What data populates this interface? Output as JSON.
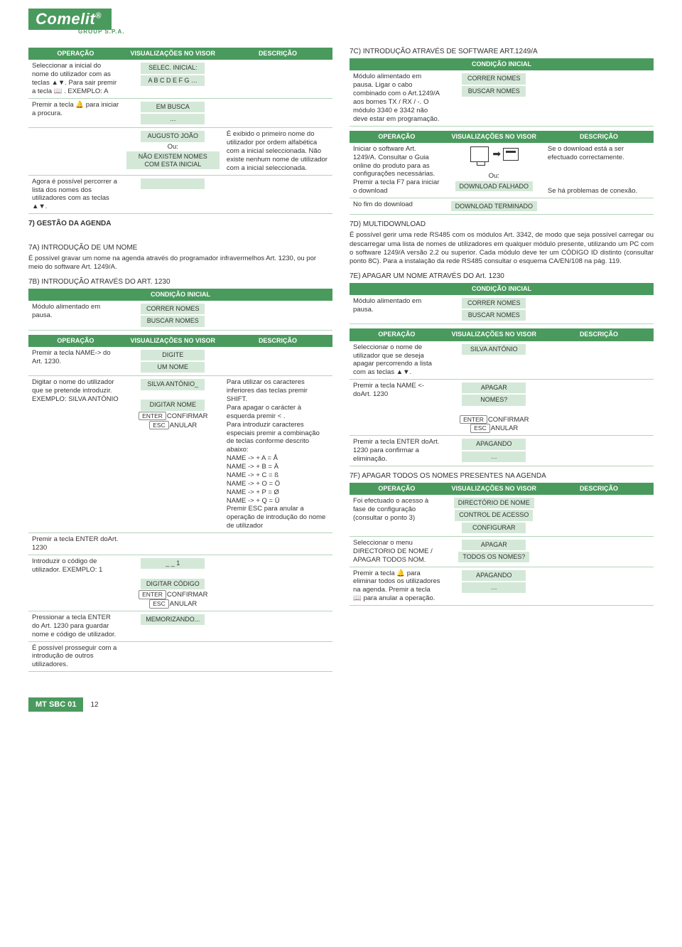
{
  "logo": {
    "brand": "Comelit",
    "sub": "GROUP S.P.A."
  },
  "headers": {
    "operacao": "OPERAÇÃO",
    "visualizacoes": "VISUALIZAÇÕES NO VISOR",
    "descricao": "DESCRIÇÃO",
    "condicao": "CONDIÇÃO INICIAL"
  },
  "left": {
    "table1": {
      "r1": {
        "op": "Seleccionar a inicial do nome do utilizador com as teclas ▲▼. Para sair premir a tecla 📖 . EXEMPLO: A",
        "vis1": "SELEC. INICIAL:",
        "vis2": "A B C D E F G …"
      },
      "r2": {
        "op": "Premir a tecla 🔔 para iniciar a procura.",
        "vis1": "EM BUSCA",
        "vis2": "…"
      },
      "r3": {
        "vis1": "AUGUSTO JOÃO",
        "ou": "Ou:",
        "vis2": "NÃO EXISTEM NOMES COM ESTA INICIAL",
        "desc": "É exibido o primeiro nome do utilizador por ordem alfabética com a inicial seleccionada. Não existe nenhum nome de utilizador com a inicial seleccionada."
      },
      "r4": {
        "op": "Agora é possível percorrer a lista dos nomes dos utilizadores com as teclas ▲▼."
      }
    },
    "s7_title": "7) GESTÃO DA AGENDA",
    "s7a_title": "7A) INTRODUÇÃO DE UM NOME",
    "s7a_text": "É possível gravar um nome na agenda através do programador infravermelhos Art. 1230, ou por meio do software Art. 1249/A.",
    "s7b_title": "7B) INTRODUÇÃO ATRAVÉS DO ART. 1230",
    "cond1": {
      "op": "Módulo alimentado em pausa.",
      "vis1": "CORRER NOMES",
      "vis2": "BUSCAR NOMES"
    },
    "table2": {
      "r1": {
        "op": "Premir a tecla NAME-> do Art. 1230.",
        "vis1": "DIGITE",
        "vis2": "UM NOME"
      },
      "r2": {
        "op": "Digitar o nome do utilizador que se pretende introduzir. EXEMPLO: SILVA ANTÓNIO",
        "vis1": "SILVA ANTÓNIO_",
        "vis2": "DIGITAR NOME",
        "k1": "ENTER",
        "k1t": "CONFIRMAR",
        "k2": "ESC",
        "k2t": "ANULAR",
        "desc": "Para utilizar os caracteres inferiores das teclas premir SHIFT.\nPara apagar o carácter à esquerda premir < .\nPara introduzir caracteres especiais premir a combinação de teclas conforme descrito abaixo:\nNAME -> + A = Å\nNAME -> + B = Ä\nNAME -> + C = ß\nNAME -> + O = Ö\nNAME -> + P = Ø\nNAME -> + Q = Ü\nPremir ESC para anular a operação de introdução do nome de utilizador"
      },
      "r3": {
        "op": "Premir a tecla ENTER doArt. 1230"
      },
      "r4": {
        "op": "Introduzir o código de utilizador. EXEMPLO: 1",
        "vis1": "_ _ 1",
        "vis2": "DIGITAR CÓDIGO",
        "k1": "ENTER",
        "k1t": "CONFIRMAR",
        "k2": "ESC",
        "k2t": "ANULAR"
      },
      "r5": {
        "op": "Pressionar a tecla ENTER do Art. 1230 para guardar nome e código de utilizador.",
        "vis1": "MEMORIZANDO..."
      },
      "r6": {
        "op": "É possível prosseguir com a introdução de outros utilizadores."
      }
    }
  },
  "right": {
    "s7c_title": "7C) INTRODUÇÃO ATRAVÉS DE SOFTWARE ART.1249/A",
    "cond1": {
      "op": "Módulo alimentado em pausa. Ligar o cabo combinado com o Art.1249/A aos bornes TX / RX / -. O módulo 3340 e 3342 não deve estar em programação.",
      "vis1": "CORRER NOMES",
      "vis2": "BUSCAR NOMES"
    },
    "table1": {
      "r1": {
        "op": "Iniciar o software Art. 1249/A. Consultar o Guia online do produto para as configurações necessárias. Premir a tecla F7 para iniciar o download",
        "desc1": "Se o download está a ser efectuado correctamente.",
        "ou": "Ou:",
        "vis2": "DOWNLOAD FALHADO",
        "desc2": "Se há problemas de conexão."
      },
      "r2": {
        "op": "No fim do download",
        "vis1": "DOWNLOAD TERMINADO"
      }
    },
    "s7d_title": "7D) MULTIDOWNLOAD",
    "s7d_text": "É possível gerir uma rede RS485 com os módulos Art. 3342, de modo que seja possível carregar ou descarregar uma lista de nomes de utilizadores em qualquer módulo presente, utilizando um PC com o software 1249/A versão 2.2 ou superior. Cada módulo deve ter um CÓDIGO ID distinto (consultar ponto 8C). Para a instalação da rede RS485 consultar o esquema CA/EN/108 na pág. 119.",
    "s7e_title": "7E) APAGAR UM NOME ATRAVÉS DO Art. 1230",
    "cond2": {
      "op": "Módulo alimentado em pausa.",
      "vis1": "CORRER NOMES",
      "vis2": "BUSCAR NOMES"
    },
    "table2": {
      "r1": {
        "op": "Seleccionar o nome de utilizador que se deseja apagar percorrendo a lista com as teclas ▲▼.",
        "vis1": "SILVA ANTÓNIO"
      },
      "r2": {
        "op": "Premir a tecla NAME <- doArt. 1230",
        "vis1": "APAGAR",
        "vis2": "NOMES?",
        "k1": "ENTER",
        "k1t": "CONFIRMAR",
        "k2": "ESC",
        "k2t": "ANULAR"
      },
      "r3": {
        "op": "Premir a tecla ENTER doArt. 1230 para confirmar a eliminação.",
        "vis1": "APAGANDO",
        "vis2": "…"
      }
    },
    "s7f_title": "7F) APAGAR TODOS OS NOMES PRESENTES NA AGENDA",
    "table3": {
      "r1": {
        "op": "Foi efectuado o acesso à fase de configuração (consultar o ponto 3)",
        "vis1": "DIRECTÓRIO DE NOME",
        "vis2": "CONTROL DE ACESSO",
        "vis3": "CONFIGURAR"
      },
      "r2": {
        "op": "Seleccionar o menu DIRECTORIO DE NOME / APAGAR TODOS NOM.",
        "vis1": "APAGAR",
        "vis2": "TODOS OS NOMES?"
      },
      "r3": {
        "op": "Premir a tecla 🔔 para eliminar todos os utilizadores na agenda. Premir a tecla 📖 para anular a operação.",
        "vis1": "APAGANDO",
        "vis2": "…"
      }
    }
  },
  "footer": {
    "tag": "MT SBC 01",
    "page": "12"
  }
}
